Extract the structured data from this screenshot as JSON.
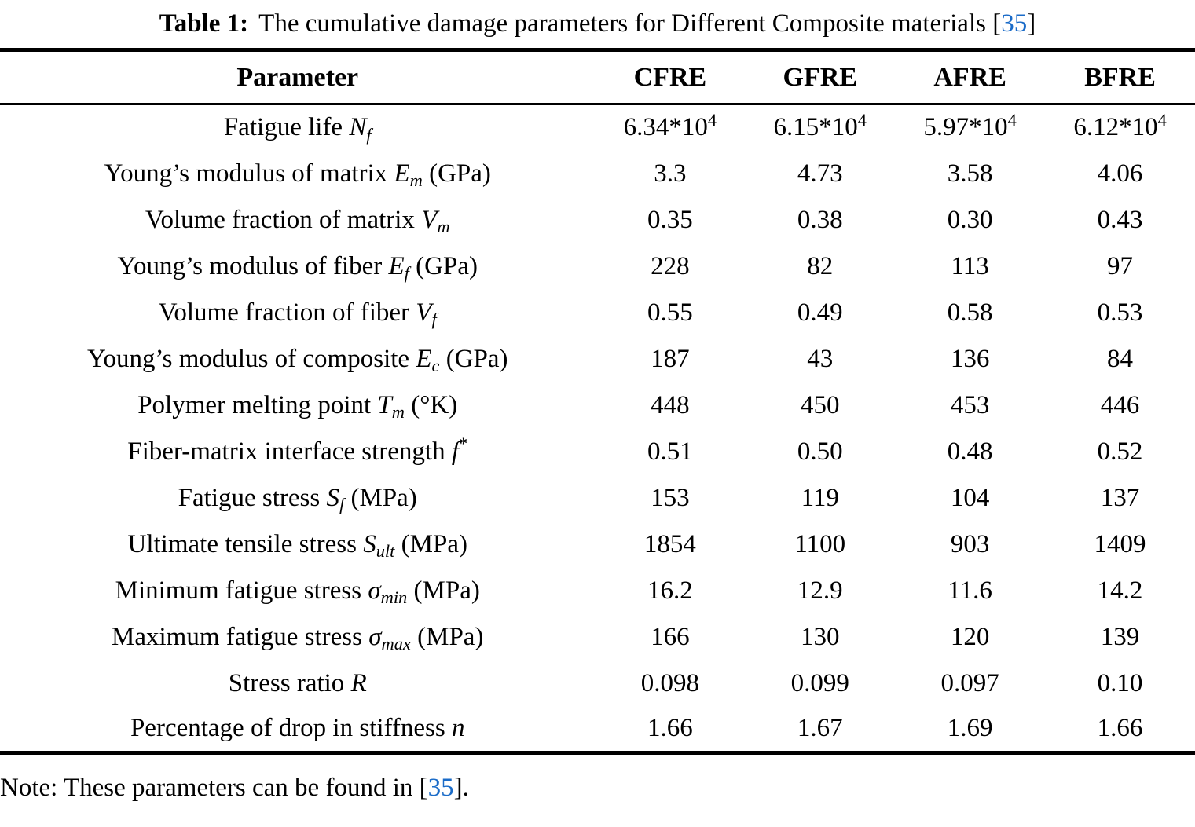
{
  "page": {
    "background": "#ffffff",
    "text_color": "#000000",
    "link_color": "#1a6bc8"
  },
  "caption": {
    "label": "Table 1:",
    "text": "The cumulative damage parameters for Different Composite materials",
    "citation_open": "[",
    "citation_number": "35",
    "citation_close": "]"
  },
  "table": {
    "headers": [
      "Parameter",
      "CFRE",
      "GFRE",
      "AFRE",
      "BFRE"
    ],
    "rows": [
      {
        "text": "Fatigue life",
        "math": {
          "main": "N",
          "sub": "f"
        },
        "unit": "",
        "values": [
          "6.34*10^4",
          "6.15*10^4",
          "5.97*10^4",
          "6.12*10^4"
        ]
      },
      {
        "text": "Young’s modulus of matrix",
        "math": {
          "main": "E",
          "sub": "m"
        },
        "unit": "(GPa)",
        "values": [
          "3.3",
          "4.73",
          "3.58",
          "4.06"
        ]
      },
      {
        "text": "Volume fraction of matrix",
        "math": {
          "main": "V",
          "sub": "m"
        },
        "unit": "",
        "values": [
          "0.35",
          "0.38",
          "0.30",
          "0.43"
        ]
      },
      {
        "text": "Young’s modulus of fiber",
        "math": {
          "main": "E",
          "sub": "f"
        },
        "unit": "(GPa)",
        "values": [
          "228",
          "82",
          "113",
          "97"
        ]
      },
      {
        "text": "Volume fraction of fiber",
        "math": {
          "main": "V",
          "sub": "f"
        },
        "unit": "",
        "values": [
          "0.55",
          "0.49",
          "0.58",
          "0.53"
        ]
      },
      {
        "text": "Young’s modulus of composite",
        "math": {
          "main": "E",
          "sub": "c"
        },
        "unit": "(GPa)",
        "values": [
          "187",
          "43",
          "136",
          "84"
        ]
      },
      {
        "text": "Polymer melting point",
        "math": {
          "main": "T",
          "sub": "m"
        },
        "unit": "(°K)",
        "values": [
          "448",
          "450",
          "453",
          "446"
        ]
      },
      {
        "text": "Fiber-matrix interface strength",
        "math": {
          "main": "f",
          "sup": "*"
        },
        "unit": "",
        "values": [
          "0.51",
          "0.50",
          "0.48",
          "0.52"
        ]
      },
      {
        "text": "Fatigue stress",
        "math": {
          "main": "S",
          "sub": "f"
        },
        "unit": "(MPa)",
        "values": [
          "153",
          "119",
          "104",
          "137"
        ]
      },
      {
        "text": "Ultimate tensile stress",
        "math": {
          "main": "S",
          "sub": "ult"
        },
        "unit": "(MPa)",
        "values": [
          "1854",
          "1100",
          "903",
          "1409"
        ]
      },
      {
        "text": "Minimum fatigue stress",
        "math": {
          "main": "σ",
          "sub": "min"
        },
        "unit": "(MPa)",
        "values": [
          "16.2",
          "12.9",
          "11.6",
          "14.2"
        ]
      },
      {
        "text": "Maximum fatigue stress",
        "math": {
          "main": "σ",
          "sub": "max"
        },
        "unit": "(MPa)",
        "values": [
          "166",
          "130",
          "120",
          "139"
        ]
      },
      {
        "text": "Stress ratio",
        "math": {
          "main": "R"
        },
        "unit": "",
        "values": [
          "0.098",
          "0.099",
          "0.097",
          "0.10"
        ]
      },
      {
        "text": "Percentage of drop in stiffness",
        "math": {
          "main": "n"
        },
        "unit": "",
        "values": [
          "1.66",
          "1.67",
          "1.69",
          "1.66"
        ]
      }
    ]
  },
  "note": {
    "prefix": "Note: These parameters can be found in",
    "citation_open": "[",
    "citation_number": "35",
    "citation_close": "]",
    "suffix": "."
  }
}
